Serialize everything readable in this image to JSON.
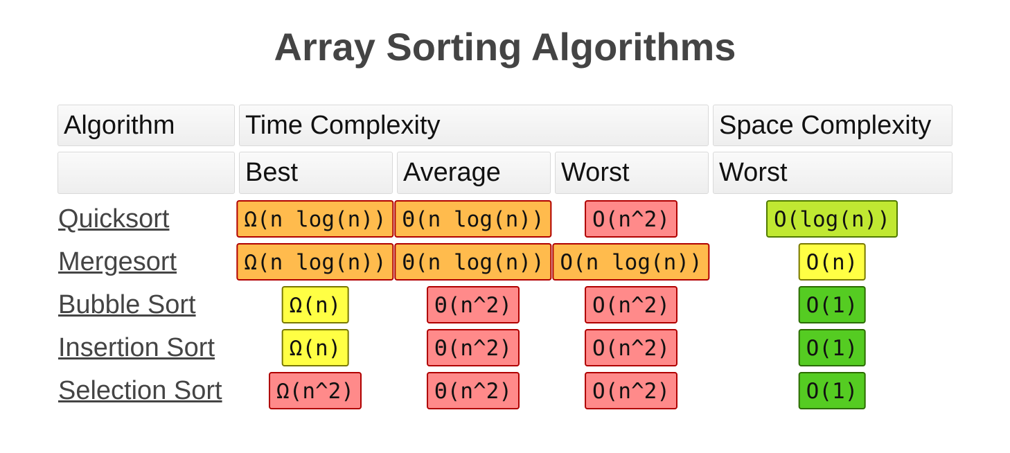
{
  "title": "Array Sorting Algorithms",
  "headers": {
    "algorithm": "Algorithm",
    "time_complexity": "Time Complexity",
    "space_complexity": "Space Complexity",
    "best": "Best",
    "average": "Average",
    "worst": "Worst",
    "space_worst": "Worst"
  },
  "colors": {
    "orange": "#ffbb4d",
    "red": "#ff8a8a",
    "yellow": "#ffff44",
    "lime": "#c0e832",
    "green": "#55cc22",
    "title": "#444444",
    "link": "#444444"
  },
  "rows": [
    {
      "name": "Quicksort",
      "best": {
        "text": "Ω(n log(n))",
        "color": "orange"
      },
      "average": {
        "text": "Θ(n log(n))",
        "color": "orange"
      },
      "worst": {
        "text": "O(n^2)",
        "color": "red"
      },
      "space": {
        "text": "O(log(n))",
        "color": "lime"
      }
    },
    {
      "name": "Mergesort",
      "best": {
        "text": "Ω(n log(n))",
        "color": "orange"
      },
      "average": {
        "text": "Θ(n log(n))",
        "color": "orange"
      },
      "worst": {
        "text": "O(n log(n))",
        "color": "orange"
      },
      "space": {
        "text": "O(n)",
        "color": "yellow"
      }
    },
    {
      "name": "Bubble Sort",
      "best": {
        "text": "Ω(n)",
        "color": "yellow"
      },
      "average": {
        "text": "Θ(n^2)",
        "color": "red"
      },
      "worst": {
        "text": "O(n^2)",
        "color": "red"
      },
      "space": {
        "text": "O(1)",
        "color": "green"
      }
    },
    {
      "name": "Insertion Sort",
      "best": {
        "text": "Ω(n)",
        "color": "yellow"
      },
      "average": {
        "text": "Θ(n^2)",
        "color": "red"
      },
      "worst": {
        "text": "O(n^2)",
        "color": "red"
      },
      "space": {
        "text": "O(1)",
        "color": "green"
      }
    },
    {
      "name": "Selection Sort",
      "best": {
        "text": "Ω(n^2)",
        "color": "red"
      },
      "average": {
        "text": "Θ(n^2)",
        "color": "red"
      },
      "worst": {
        "text": "O(n^2)",
        "color": "red"
      },
      "space": {
        "text": "O(1)",
        "color": "green"
      }
    }
  ]
}
